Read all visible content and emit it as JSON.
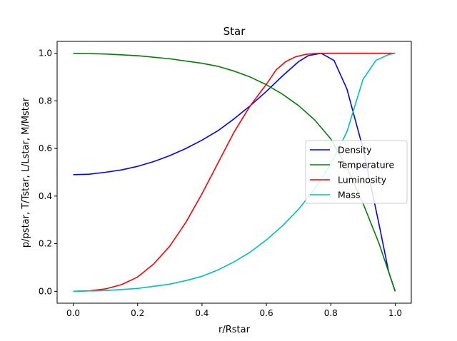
{
  "chart_data": {
    "type": "line",
    "title": "Star",
    "xlabel": "r/Rstar",
    "ylabel": "p/pstar, T/Tstar, L/Lstar, M/Mstar",
    "xlim": [
      -0.05,
      1.05
    ],
    "ylim": [
      -0.05,
      1.05
    ],
    "xticks": [
      0.0,
      0.2,
      0.4,
      0.6,
      0.8,
      1.0
    ],
    "yticks": [
      0.0,
      0.2,
      0.4,
      0.6,
      0.8,
      1.0
    ],
    "xtick_labels": [
      "0.0",
      "0.2",
      "0.4",
      "0.6",
      "0.8",
      "1.0"
    ],
    "ytick_labels": [
      "0.0",
      "0.2",
      "0.4",
      "0.6",
      "0.8",
      "1.0"
    ],
    "grid": false,
    "legend_position": "center-right",
    "series": [
      {
        "name": "Density",
        "color": "#0000ff",
        "x": [
          0.0,
          0.05,
          0.1,
          0.15,
          0.2,
          0.25,
          0.3,
          0.35,
          0.4,
          0.45,
          0.5,
          0.55,
          0.6,
          0.65,
          0.7,
          0.73,
          0.77,
          0.81,
          0.85,
          0.9,
          0.95,
          0.98,
          1.0
        ],
        "y": [
          0.49,
          0.492,
          0.5,
          0.51,
          0.525,
          0.545,
          0.57,
          0.6,
          0.635,
          0.675,
          0.725,
          0.78,
          0.84,
          0.905,
          0.965,
          0.99,
          1.0,
          0.97,
          0.85,
          0.6,
          0.28,
          0.08,
          0.0
        ]
      },
      {
        "name": "Temperature",
        "color": "#008000",
        "x": [
          0.0,
          0.1,
          0.2,
          0.3,
          0.4,
          0.45,
          0.5,
          0.55,
          0.6,
          0.65,
          0.7,
          0.75,
          0.8,
          0.85,
          0.9,
          0.95,
          1.0
        ],
        "y": [
          1.0,
          0.997,
          0.99,
          0.977,
          0.958,
          0.945,
          0.925,
          0.9,
          0.868,
          0.828,
          0.78,
          0.72,
          0.64,
          0.52,
          0.37,
          0.2,
          0.0
        ]
      },
      {
        "name": "Luminosity",
        "color": "#ff0000",
        "x": [
          0.0,
          0.05,
          0.1,
          0.15,
          0.2,
          0.25,
          0.3,
          0.35,
          0.4,
          0.45,
          0.5,
          0.55,
          0.6,
          0.63,
          0.66,
          0.69,
          0.72,
          0.75,
          0.8,
          0.9,
          1.0
        ],
        "y": [
          0.0,
          0.002,
          0.01,
          0.028,
          0.06,
          0.115,
          0.19,
          0.29,
          0.41,
          0.54,
          0.67,
          0.78,
          0.87,
          0.93,
          0.965,
          0.985,
          0.995,
          0.999,
          1.0,
          1.0,
          1.0
        ]
      },
      {
        "name": "Mass",
        "color": "#00bfbf",
        "x": [
          0.0,
          0.1,
          0.2,
          0.3,
          0.35,
          0.4,
          0.45,
          0.5,
          0.55,
          0.6,
          0.65,
          0.7,
          0.75,
          0.8,
          0.85,
          0.9,
          0.94,
          0.98,
          1.0
        ],
        "y": [
          0.0,
          0.003,
          0.012,
          0.03,
          0.045,
          0.063,
          0.09,
          0.124,
          0.165,
          0.216,
          0.275,
          0.345,
          0.43,
          0.535,
          0.67,
          0.89,
          0.97,
          0.995,
          1.0
        ]
      }
    ]
  }
}
